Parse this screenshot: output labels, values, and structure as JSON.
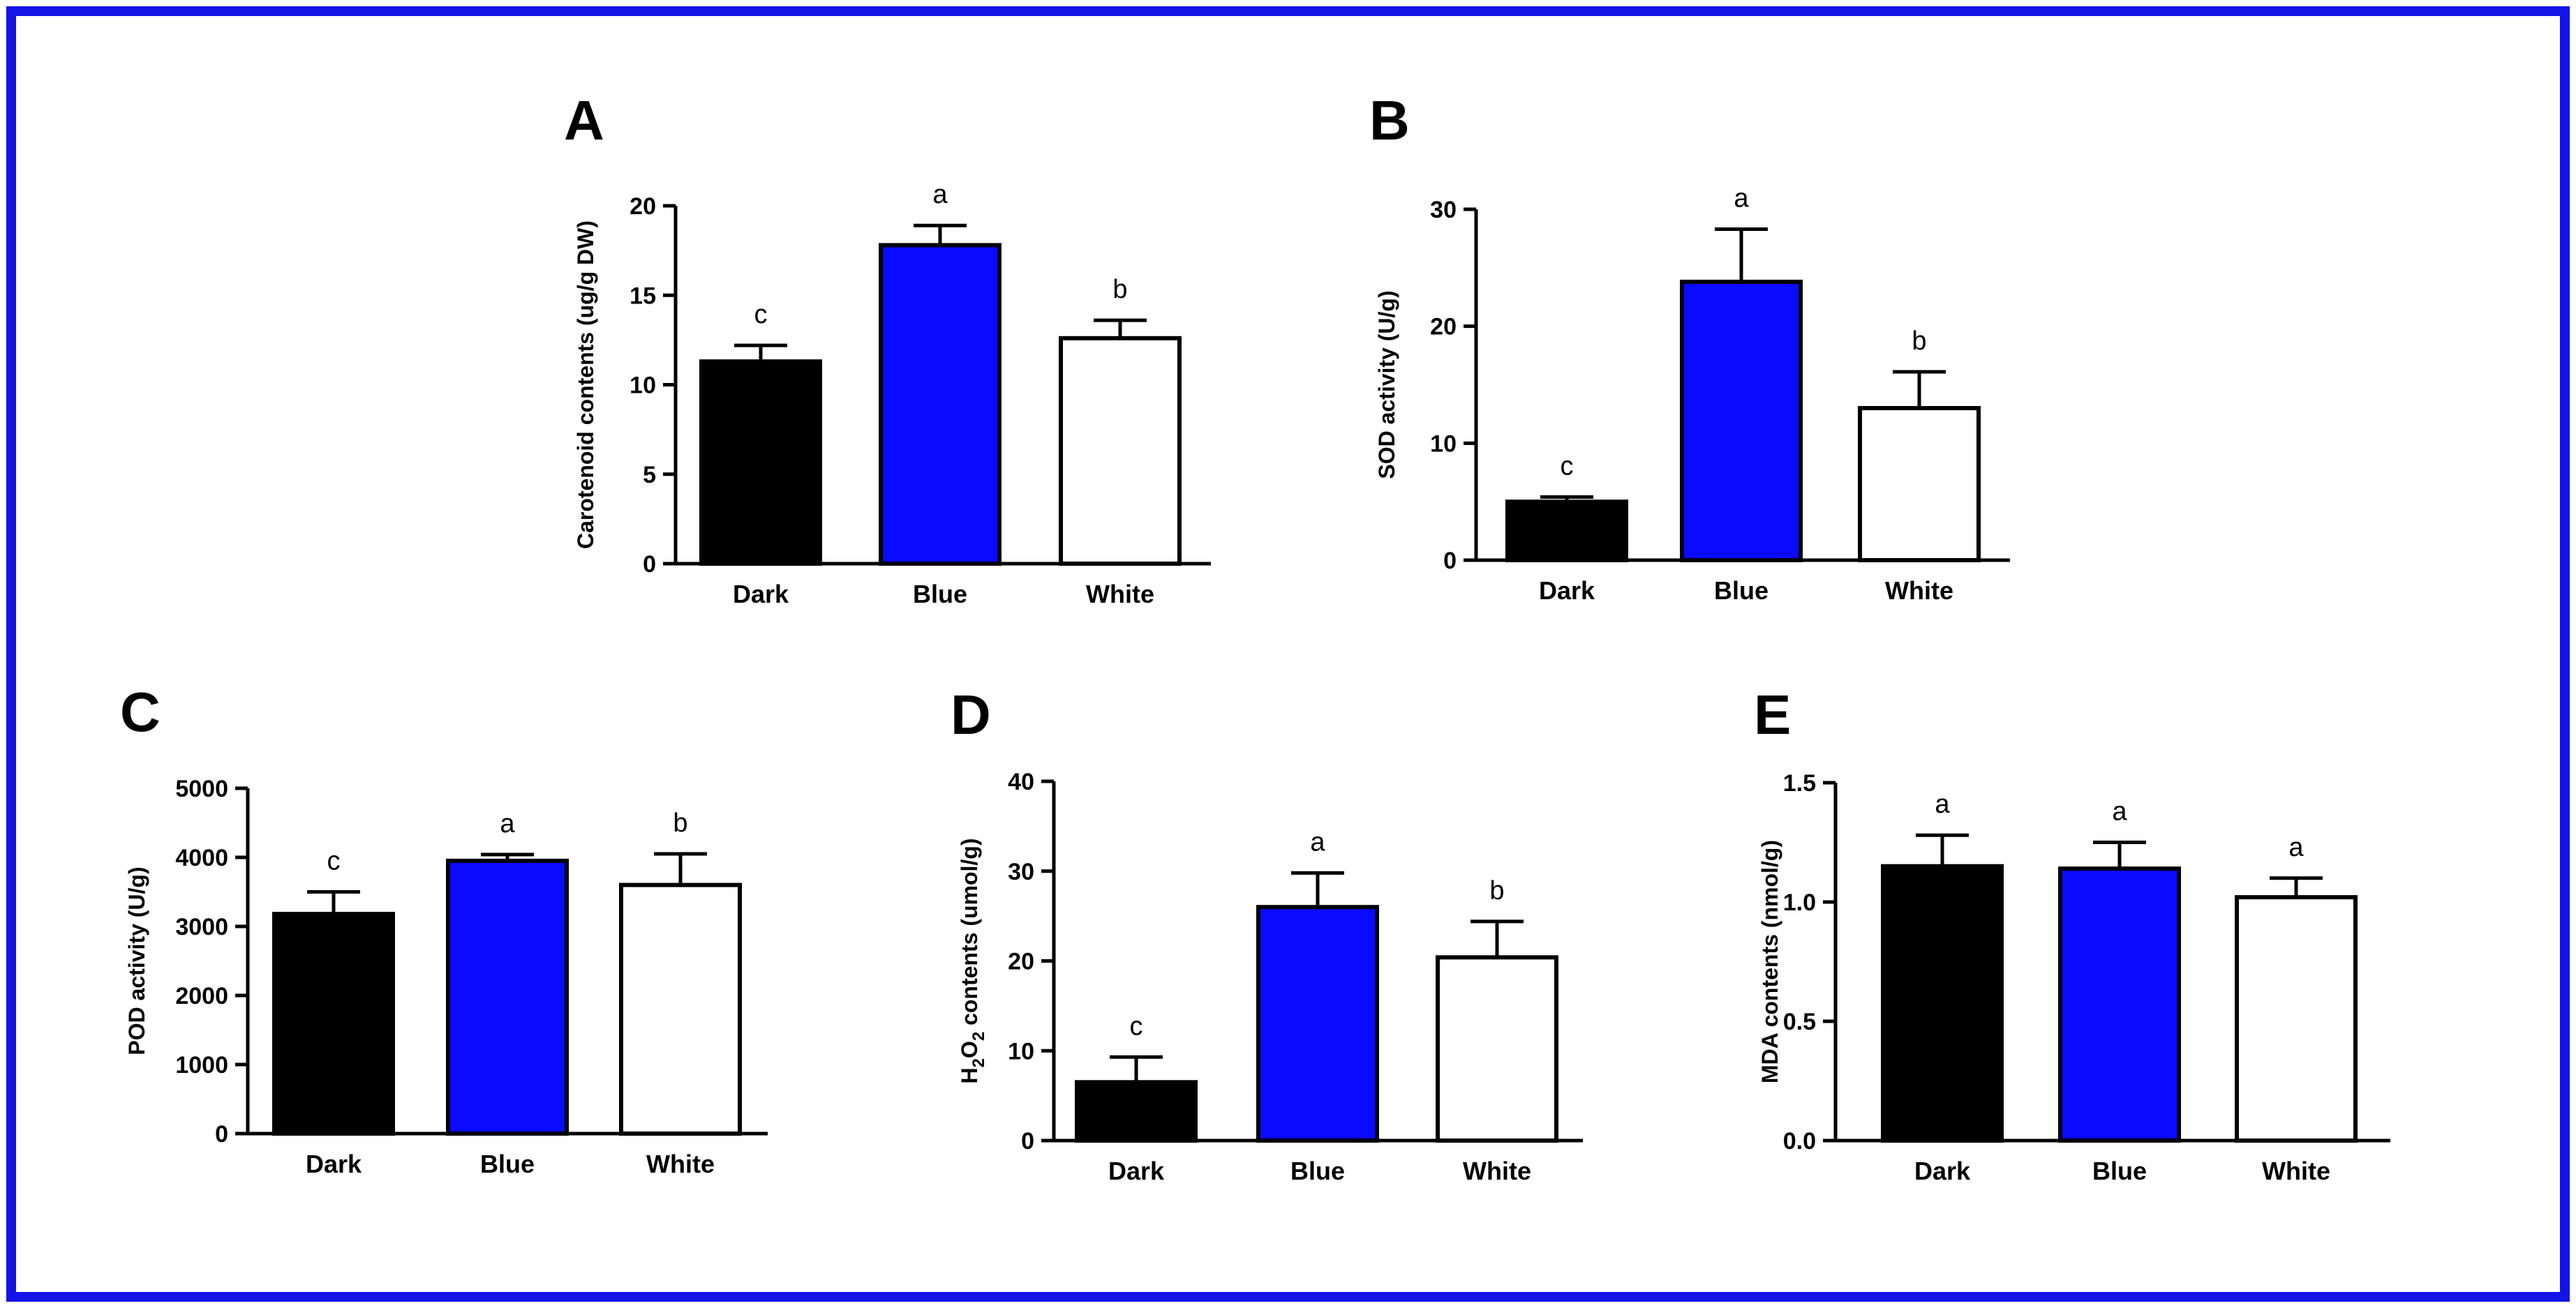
{
  "figure": {
    "frame_color": "#1414e6",
    "bar_stroke": "#000000"
  },
  "chart_data": [
    {
      "panel": "A",
      "type": "bar",
      "categories": [
        "Dark",
        "Blue",
        "White"
      ],
      "values": [
        11.3,
        17.8,
        12.6
      ],
      "errors": [
        0.9,
        1.1,
        1.0
      ],
      "significance": [
        "c",
        "a",
        "b"
      ],
      "colors": [
        "#000000",
        "#0a0aff",
        "#ffffff"
      ],
      "ylabel": "Carotenoid contents (ug/g DW)",
      "ylabel_sub": "",
      "ylim": [
        0,
        20
      ],
      "yticks": [
        0,
        5,
        10,
        15,
        20
      ],
      "ytick_labels": [
        "0",
        "5",
        "10",
        "15",
        "20"
      ]
    },
    {
      "panel": "B",
      "type": "bar",
      "categories": [
        "Dark",
        "Blue",
        "White"
      ],
      "values": [
        5.0,
        23.8,
        13.0
      ],
      "errors": [
        0.4,
        4.5,
        3.1
      ],
      "significance": [
        "c",
        "a",
        "b"
      ],
      "colors": [
        "#000000",
        "#0a0aff",
        "#ffffff"
      ],
      "ylabel": "SOD activity (U/g)",
      "ylabel_sub": "",
      "ylim": [
        0,
        30
      ],
      "yticks": [
        0,
        10,
        20,
        30
      ],
      "ytick_labels": [
        "0",
        "10",
        "20",
        "30"
      ]
    },
    {
      "panel": "C",
      "type": "bar",
      "categories": [
        "Dark",
        "Blue",
        "White"
      ],
      "values": [
        3180,
        3950,
        3600
      ],
      "errors": [
        320,
        90,
        450
      ],
      "significance": [
        "c",
        "a",
        "b"
      ],
      "colors": [
        "#000000",
        "#0a0aff",
        "#ffffff"
      ],
      "ylabel": "POD activity (U/g)",
      "ylabel_sub": "",
      "ylim": [
        0,
        5000
      ],
      "yticks": [
        0,
        1000,
        2000,
        3000,
        4000,
        5000
      ],
      "ytick_labels": [
        "0",
        "1000",
        "2000",
        "3000",
        "4000",
        "5000"
      ]
    },
    {
      "panel": "D",
      "type": "bar",
      "categories": [
        "Dark",
        "Blue",
        "White"
      ],
      "values": [
        6.5,
        26.0,
        20.4
      ],
      "errors": [
        2.8,
        3.8,
        4.0
      ],
      "significance": [
        "c",
        "a",
        "b"
      ],
      "colors": [
        "#000000",
        "#0a0aff",
        "#ffffff"
      ],
      "ylabel": "H2O2 contents (umol/g)",
      "ylabel_parts": [
        "H",
        "2",
        "O",
        "2",
        " contents (umol/g)"
      ],
      "ylabel_sub": "",
      "ylim": [
        0,
        40
      ],
      "yticks": [
        0,
        10,
        20,
        30,
        40
      ],
      "ytick_labels": [
        "0",
        "10",
        "20",
        "30",
        "40"
      ]
    },
    {
      "panel": "E",
      "type": "bar",
      "categories": [
        "Dark",
        "Blue",
        "White"
      ],
      "values": [
        1.15,
        1.14,
        1.02
      ],
      "errors": [
        0.13,
        0.11,
        0.08
      ],
      "significance": [
        "a",
        "a",
        "a"
      ],
      "colors": [
        "#000000",
        "#0a0aff",
        "#ffffff"
      ],
      "ylabel": "MDA contents (nmol/g)",
      "ylabel_sub": "",
      "ylim": [
        0,
        1.5
      ],
      "yticks": [
        0,
        0.5,
        1.0,
        1.5
      ],
      "ytick_labels": [
        "0.0",
        "0.5",
        "1.0",
        "1.5"
      ]
    }
  ]
}
